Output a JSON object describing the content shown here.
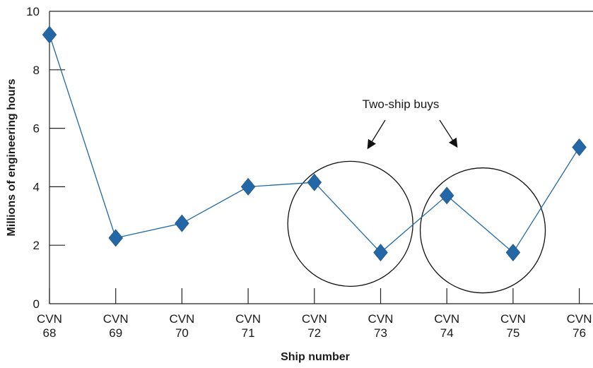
{
  "chart_data": {
    "type": "line",
    "xlabel": "Ship number",
    "ylabel": "Millions of engineering hours",
    "categories": [
      [
        "CVN",
        "68"
      ],
      [
        "CVN",
        "69"
      ],
      [
        "CVN",
        "70"
      ],
      [
        "CVN",
        "71"
      ],
      [
        "CVN",
        "72"
      ],
      [
        "CVN",
        "73"
      ],
      [
        "CVN",
        "74"
      ],
      [
        "CVN",
        "75"
      ],
      [
        "CVN",
        "76"
      ]
    ],
    "series": [
      {
        "values": [
          9.2,
          2.25,
          2.75,
          4.0,
          4.15,
          1.75,
          3.7,
          1.75,
          5.35
        ]
      }
    ],
    "ylim": [
      0,
      10
    ],
    "yticks": [
      0,
      2,
      4,
      6,
      8,
      10
    ],
    "grid": false,
    "colors": {
      "line": "#1f6aa5",
      "marker": "#2467a6",
      "axis": "#222222"
    },
    "annotation": {
      "text": "Two-ship buys",
      "groups": [
        [
          "CVN 72",
          "CVN 73"
        ],
        [
          "CVN 74",
          "CVN 75"
        ]
      ]
    }
  }
}
